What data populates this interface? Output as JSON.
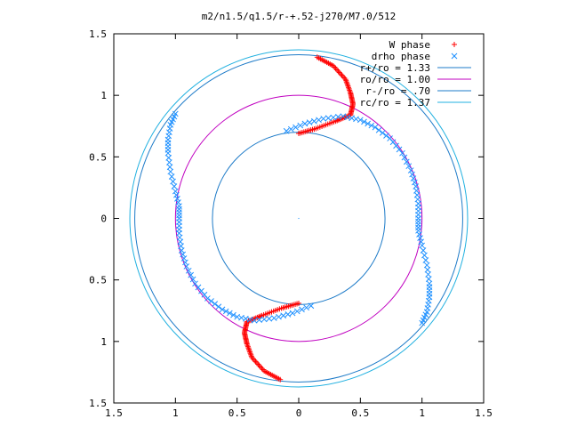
{
  "chart_data": {
    "type": "scatter",
    "title": "m2/n1.5/q1.5/r-+.52-j270/M7.0/512",
    "xlabel": "",
    "ylabel": "",
    "xlim": [
      -1.5,
      1.5
    ],
    "ylim": [
      -1.5,
      1.5
    ],
    "x_ticks": [
      -1.5,
      -1,
      -0.5,
      0,
      0.5,
      1,
      1.5
    ],
    "y_ticks": [
      -1.5,
      -1,
      -0.5,
      0,
      0.5,
      1,
      1.5
    ],
    "x_tick_labels": [
      "1.5",
      "1",
      "0.5",
      "0",
      "0.5",
      "1",
      "1.5"
    ],
    "y_tick_labels": [
      "1.5",
      "1",
      "0.5",
      "0",
      "0.5",
      "1",
      "1.5"
    ],
    "grid": false,
    "legend_position": "top-right",
    "legend": [
      {
        "label": "W phase",
        "marker": "+",
        "color": "#ff0000"
      },
      {
        "label": "drho phase",
        "marker": "x",
        "color": "#1e90ff"
      },
      {
        "label": "r+/ro = 1.33",
        "line": true,
        "color": "#1e7bc8"
      },
      {
        "label": "ro/ro = 1.00",
        "line": true,
        "color": "#c000c0"
      },
      {
        "label": "r-/ro = .70",
        "line": true,
        "color": "#1e7bc8"
      },
      {
        "label": "rc/ro = 1.37",
        "line": true,
        "color": "#20b0e0"
      }
    ],
    "circles": [
      {
        "name": "r+/ro = 1.33",
        "r": 1.33,
        "color": "#1e7bc8"
      },
      {
        "name": "ro/ro = 1.00",
        "r": 1.0,
        "color": "#c000c0"
      },
      {
        "name": "r-/ro = .70",
        "r": 0.7,
        "color": "#1e7bc8"
      },
      {
        "name": "rc/ro = 1.37",
        "r": 1.37,
        "color": "#20b0e0"
      }
    ],
    "series": [
      {
        "name": "W phase",
        "marker": "+",
        "color": "#ff0000",
        "arms": [
          [
            [
              0.15,
              1.31
            ],
            [
              0.28,
              1.24
            ],
            [
              0.38,
              1.13
            ],
            [
              0.42,
              1.02
            ],
            [
              0.44,
              0.93
            ],
            [
              0.42,
              0.84
            ],
            [
              0.3,
              0.79
            ],
            [
              0.14,
              0.73
            ],
            [
              0.0,
              0.69
            ]
          ],
          [
            [
              -0.15,
              -1.31
            ],
            [
              -0.28,
              -1.24
            ],
            [
              -0.38,
              -1.13
            ],
            [
              -0.42,
              -1.02
            ],
            [
              -0.44,
              -0.93
            ],
            [
              -0.42,
              -0.84
            ],
            [
              -0.3,
              -0.79
            ],
            [
              -0.14,
              -0.73
            ],
            [
              0.0,
              -0.69
            ]
          ]
        ]
      },
      {
        "name": "drho phase",
        "marker": "x",
        "color": "#1e90ff",
        "arms": [
          [
            [
              -0.1,
              0.71
            ],
            [
              0.05,
              0.77
            ],
            [
              0.2,
              0.81
            ],
            [
              0.36,
              0.83
            ],
            [
              0.5,
              0.8
            ],
            [
              0.62,
              0.74
            ],
            [
              0.74,
              0.65
            ],
            [
              0.84,
              0.53
            ],
            [
              0.91,
              0.39
            ],
            [
              0.95,
              0.26
            ],
            [
              0.97,
              0.12
            ],
            [
              0.97,
              0.0
            ],
            [
              0.97,
              -0.1
            ],
            [
              1.0,
              -0.22
            ],
            [
              1.04,
              -0.38
            ],
            [
              1.06,
              -0.53
            ],
            [
              1.06,
              -0.64
            ],
            [
              1.04,
              -0.76
            ],
            [
              1.0,
              -0.85
            ]
          ],
          [
            [
              0.1,
              -0.71
            ],
            [
              -0.05,
              -0.77
            ],
            [
              -0.2,
              -0.81
            ],
            [
              -0.36,
              -0.83
            ],
            [
              -0.5,
              -0.8
            ],
            [
              -0.62,
              -0.74
            ],
            [
              -0.74,
              -0.65
            ],
            [
              -0.84,
              -0.53
            ],
            [
              -0.91,
              -0.39
            ],
            [
              -0.95,
              -0.26
            ],
            [
              -0.97,
              -0.12
            ],
            [
              -0.97,
              0.0
            ],
            [
              -0.97,
              0.1
            ],
            [
              -1.0,
              0.22
            ],
            [
              -1.04,
              0.38
            ],
            [
              -1.06,
              0.53
            ],
            [
              -1.06,
              0.64
            ],
            [
              -1.04,
              0.76
            ],
            [
              -1.0,
              0.85
            ]
          ]
        ]
      }
    ]
  }
}
